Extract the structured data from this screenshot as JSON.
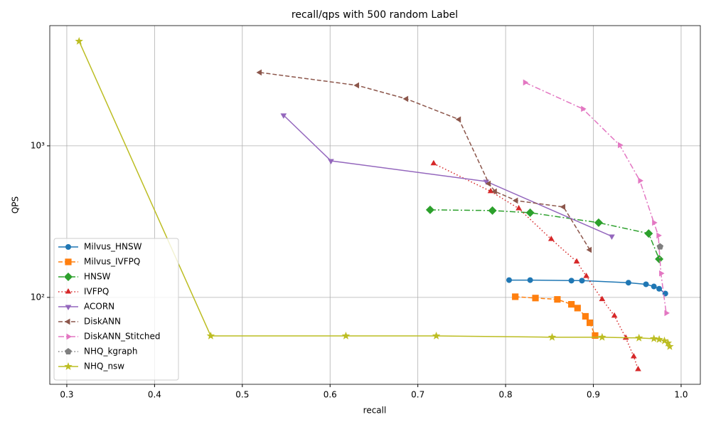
{
  "chart_data": {
    "type": "line",
    "title": "recall/qps with 500 random Label",
    "x_label": "recall",
    "y_label": "QPS",
    "xlim": [
      0.2806,
      1.0219
    ],
    "xticks": [
      0.3,
      0.4,
      0.5,
      0.6,
      0.7,
      0.8,
      0.9,
      {
        "value": 1,
        "label": "1.0"
      }
    ],
    "ylim": [
      26.7,
      6210
    ],
    "yscale": "log",
    "yticks": [
      {
        "value": 100,
        "label": "10²"
      },
      {
        "value": 1000,
        "label": "10³"
      }
    ],
    "grid": true,
    "legend": "lower left",
    "series": [
      {
        "name": "Milvus_HNSW",
        "color": "#1f77b4",
        "linestyle": "-",
        "marker": "o",
        "x": [
          0.804,
          0.828,
          0.875,
          0.887,
          0.94,
          0.96,
          0.969,
          0.975,
          0.982
        ],
        "values": [
          130,
          130,
          129,
          129,
          125,
          122,
          118,
          114,
          106
        ]
      },
      {
        "name": "Milvus_IVFPQ",
        "color": "#ff7f0e",
        "linestyle": "--",
        "marker": "s",
        "x": [
          0.811,
          0.834,
          0.859,
          0.875,
          0.882,
          0.891,
          0.896,
          0.902
        ],
        "values": [
          101,
          99,
          97,
          90,
          85,
          75,
          68,
          56
        ]
      },
      {
        "name": "HNSW",
        "color": "#2ca02c",
        "linestyle": "-.",
        "marker": "D",
        "x": [
          0.714,
          0.785,
          0.828,
          0.906,
          0.963,
          0.975
        ],
        "values": [
          378,
          374,
          362,
          311,
          264,
          179
        ]
      },
      {
        "name": "IVFPQ",
        "color": "#d62728",
        "linestyle": ":",
        "marker": "^",
        "x": [
          0.718,
          0.783,
          0.815,
          0.852,
          0.881,
          0.892,
          0.91,
          0.924,
          0.937,
          0.946,
          0.951
        ],
        "values": [
          764,
          501,
          386,
          242,
          172,
          138,
          97,
          75.5,
          54,
          40.7,
          33.5
        ]
      },
      {
        "name": "ACORN",
        "color": "#9467bd",
        "linestyle": "-",
        "marker": "v",
        "x": [
          0.547,
          0.601,
          0.778,
          0.921
        ],
        "values": [
          1592,
          796,
          582,
          253
        ]
      },
      {
        "name": "DiskANN",
        "color": "#8c564b",
        "linestyle": "--",
        "marker": "<",
        "x": [
          0.52,
          0.631,
          0.687,
          0.747,
          0.781,
          0.788,
          0.812,
          0.866,
          0.896
        ],
        "values": [
          3048,
          2505,
          2041,
          1492,
          563,
          500,
          435,
          395,
          206
        ]
      },
      {
        "name": "DiskANN_Stitched",
        "color": "#e377c2",
        "linestyle": "-.",
        "marker": ">",
        "x": [
          0.822,
          0.888,
          0.93,
          0.953,
          0.969,
          0.974,
          0.977,
          0.983
        ],
        "values": [
          2618,
          1753,
          1011,
          589,
          311,
          256,
          144,
          78.8
        ]
      },
      {
        "name": "NHQ_kgraph",
        "color": "#7f7f7f",
        "linestyle": ":",
        "marker": "p",
        "x": [
          0.976
        ],
        "values": [
          216
        ]
      },
      {
        "name": "NHQ_nsw",
        "color": "#bcbd22",
        "linestyle": "-",
        "marker": "*",
        "x": [
          0.314,
          0.464,
          0.618,
          0.721,
          0.853,
          0.91,
          0.952,
          0.969,
          0.975,
          0.981,
          0.985,
          0.987
        ],
        "values": [
          4898,
          55.7,
          55.7,
          55.7,
          54.6,
          54.6,
          54.0,
          53.4,
          52.8,
          51.7,
          50.0,
          47.4
        ]
      }
    ]
  }
}
